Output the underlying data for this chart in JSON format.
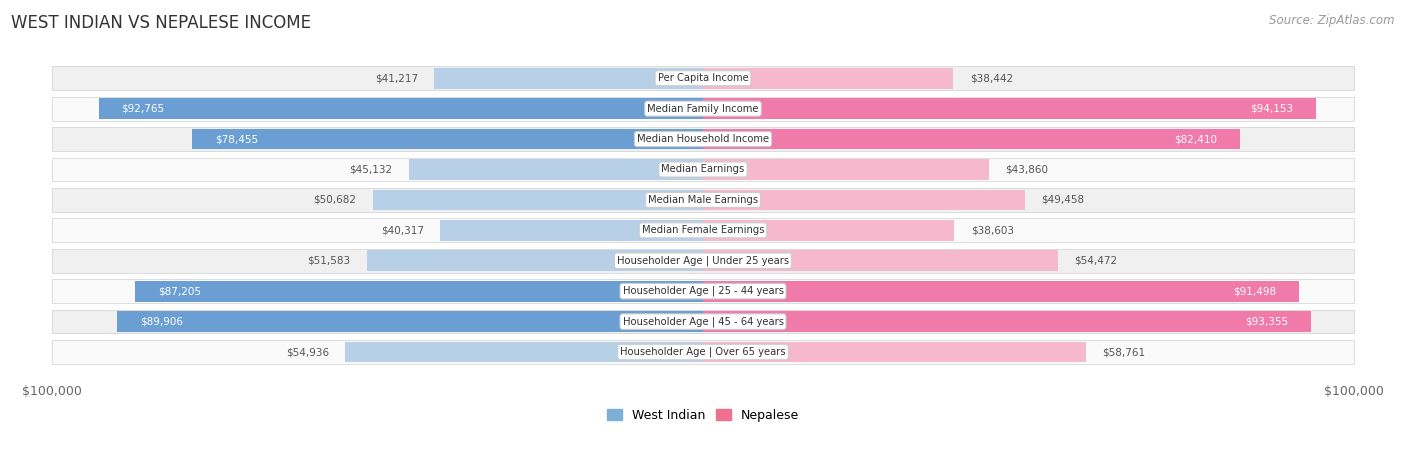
{
  "title": "WEST INDIAN VS NEPALESE INCOME",
  "source": "Source: ZipAtlas.com",
  "categories": [
    "Per Capita Income",
    "Median Family Income",
    "Median Household Income",
    "Median Earnings",
    "Median Male Earnings",
    "Median Female Earnings",
    "Householder Age | Under 25 years",
    "Householder Age | 25 - 44 years",
    "Householder Age | 45 - 64 years",
    "Householder Age | Over 65 years"
  ],
  "west_indian": [
    41217,
    92765,
    78455,
    45132,
    50682,
    40317,
    51583,
    87205,
    89906,
    54936
  ],
  "nepalese": [
    38442,
    94153,
    82410,
    43860,
    49458,
    38603,
    54472,
    91498,
    93355,
    58761
  ],
  "max_val": 100000,
  "blue_light": "#b8cfe8",
  "blue_dark": "#6b9fd4",
  "pink_light": "#f5b8cc",
  "pink_dark": "#f07aaa",
  "row_bg_alt": "#f0f0f0",
  "row_bg_main": "#fafafa",
  "title_color": "#333333",
  "axis_label_color": "#666666",
  "value_color_outside": "#555555",
  "legend_blue": "#7bafd4",
  "legend_pink": "#f07090"
}
